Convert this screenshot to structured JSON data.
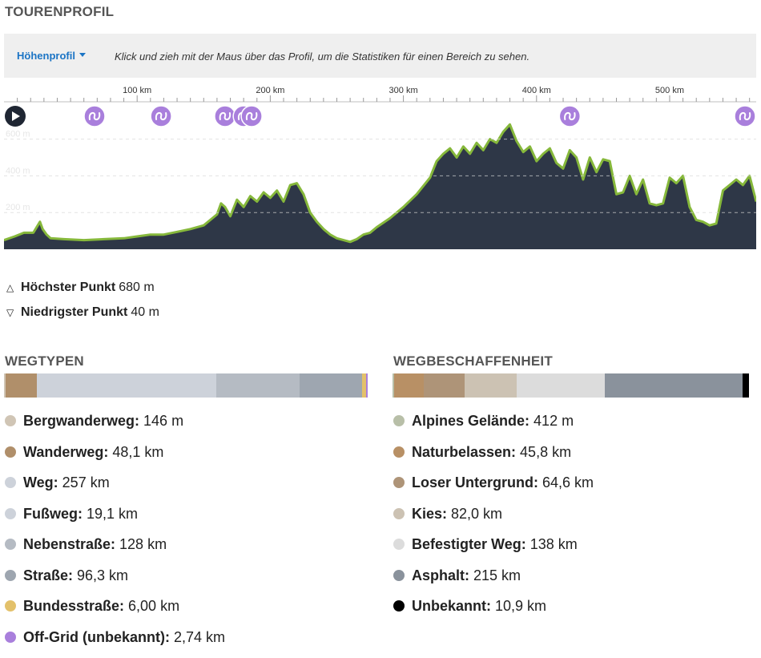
{
  "header": {
    "title": "TOURENPROFIL"
  },
  "toolbar": {
    "dropdown_label": "Höhenprofil",
    "hint": "Klick und zieh mit der Maus über das Profil, um die Statistiken für einen Bereich zu sehen."
  },
  "chart_data": {
    "type": "area",
    "x_unit": "km",
    "xlim": [
      0,
      565
    ],
    "ylim": [
      0,
      760
    ],
    "x_ticks": [
      {
        "value": 100,
        "label": "100 km"
      },
      {
        "value": 200,
        "label": "200 km"
      },
      {
        "value": 300,
        "label": "300 km"
      },
      {
        "value": 400,
        "label": "400 km"
      },
      {
        "value": 500,
        "label": "500 km"
      }
    ],
    "y_ticks": [
      {
        "value": 200,
        "label": "200 m"
      },
      {
        "value": 400,
        "label": "400 m"
      },
      {
        "value": 600,
        "label": "600 m"
      }
    ],
    "grid": true,
    "fill_color": "#2e3747",
    "line_color": "#86b83b",
    "x": [
      0,
      8,
      15,
      22,
      27,
      29,
      32,
      35,
      45,
      60,
      75,
      90,
      100,
      110,
      120,
      130,
      140,
      150,
      160,
      163,
      166,
      170,
      175,
      180,
      185,
      190,
      195,
      200,
      205,
      210,
      215,
      220,
      225,
      230,
      235,
      240,
      245,
      250,
      255,
      260,
      265,
      270,
      275,
      280,
      290,
      300,
      310,
      320,
      325,
      330,
      335,
      340,
      345,
      350,
      355,
      360,
      365,
      370,
      375,
      380,
      385,
      390,
      395,
      400,
      405,
      410,
      415,
      420,
      425,
      430,
      435,
      440,
      445,
      450,
      455,
      460,
      465,
      470,
      475,
      480,
      485,
      490,
      495,
      500,
      505,
      510,
      515,
      520,
      525,
      530,
      535,
      540,
      545,
      550,
      555,
      560,
      565
    ],
    "y": [
      50,
      70,
      90,
      90,
      150,
      110,
      80,
      60,
      55,
      50,
      55,
      60,
      70,
      80,
      80,
      95,
      110,
      130,
      190,
      250,
      230,
      180,
      270,
      230,
      290,
      260,
      310,
      280,
      320,
      260,
      350,
      360,
      300,
      200,
      150,
      110,
      80,
      60,
      50,
      40,
      55,
      80,
      90,
      120,
      170,
      230,
      300,
      390,
      480,
      520,
      550,
      500,
      560,
      520,
      580,
      540,
      600,
      580,
      640,
      680,
      590,
      530,
      560,
      480,
      520,
      550,
      470,
      440,
      540,
      500,
      380,
      500,
      420,
      490,
      480,
      300,
      310,
      400,
      300,
      380,
      250,
      240,
      250,
      390,
      360,
      400,
      230,
      160,
      150,
      130,
      140,
      320,
      350,
      380,
      350,
      400,
      260
    ],
    "waypoints_km": [
      0,
      68,
      118,
      166,
      180,
      186,
      425,
      560
    ]
  },
  "stats": {
    "highest_label": "Höchster Punkt",
    "highest_value": "680 m",
    "lowest_label": "Niedrigster Punkt",
    "lowest_value": "40 m"
  },
  "wegtypen": {
    "title": "WEGTYPEN",
    "items": [
      {
        "name": "Bergwanderweg:",
        "value": "146 m",
        "color": "#d0c5b5",
        "share": 0.0003
      },
      {
        "name": "Wanderweg:",
        "value": "48,1 km",
        "color": "#b08f6a",
        "share": 0.0863
      },
      {
        "name": "Weg:",
        "value": "257 km",
        "color": "#cdd2da",
        "share": 0.4609
      },
      {
        "name": "Fußweg:",
        "value": "19,1 km",
        "color": "#cdd2da",
        "share": 0.0343
      },
      {
        "name": "Nebenstraße:",
        "value": "128 km",
        "color": "#b5bbc3",
        "share": 0.2296
      },
      {
        "name": "Straße:",
        "value": "96,3 km",
        "color": "#9ea6b0",
        "share": 0.1727
      },
      {
        "name": "Bundesstraße:",
        "value": "6,00 km",
        "color": "#e3c16b",
        "share": 0.0108
      },
      {
        "name": "Off-Grid (unbekannt):",
        "value": "2,74 km",
        "color": "#a97fdc",
        "share": 0.0049
      }
    ]
  },
  "wegbeschaffenheit": {
    "title": "WEGBESCHAFFENHEIT",
    "items": [
      {
        "name": "Alpines Gelände:",
        "value": "412 m",
        "color": "#b8bfa8",
        "share": 0.0007
      },
      {
        "name": "Naturbelassen:",
        "value": "45,8 km",
        "color": "#b89065",
        "share": 0.0807
      },
      {
        "name": "Loser Untergrund:",
        "value": "64,6 km",
        "color": "#ae9478",
        "share": 0.1138
      },
      {
        "name": "Kies:",
        "value": "82,0 km",
        "color": "#ccc2b3",
        "share": 0.1445
      },
      {
        "name": "Befestigter Weg:",
        "value": "138 km",
        "color": "#dcdcdc",
        "share": 0.2432
      },
      {
        "name": "Asphalt:",
        "value": "215 km",
        "color": "#8a929c",
        "share": 0.3789
      },
      {
        "name": "Unbekannt:",
        "value": "10,9 km",
        "color": "#000000",
        "share": 0.0192
      }
    ]
  }
}
